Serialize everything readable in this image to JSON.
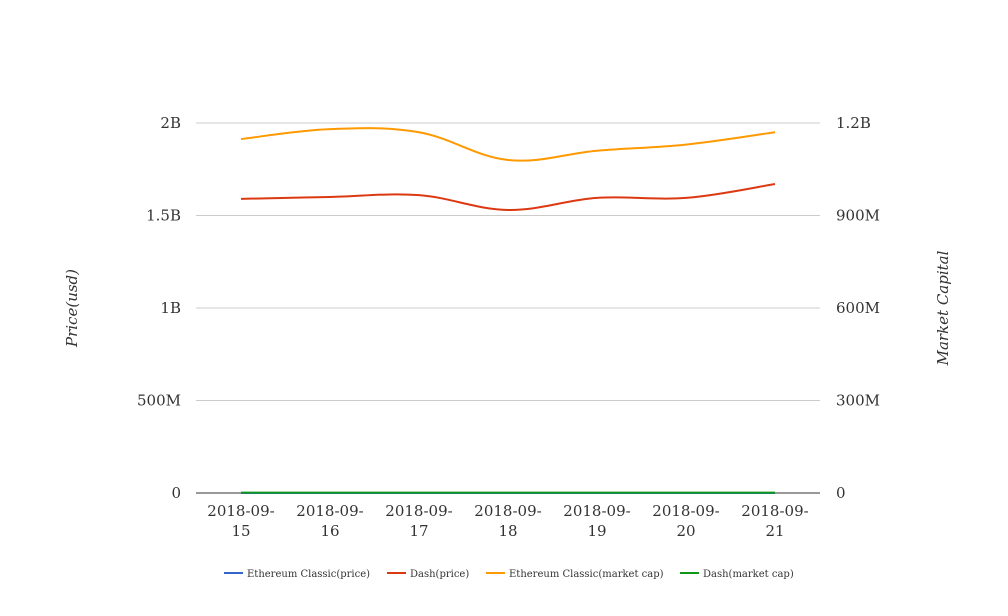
{
  "chart_data": {
    "type": "line",
    "x": [
      "2018-09-15",
      "2018-09-16",
      "2018-09-17",
      "2018-09-18",
      "2018-09-19",
      "2018-09-20",
      "2018-09-21"
    ],
    "x_tick_labels": [
      [
        "2018-09-",
        "15"
      ],
      [
        "2018-09-",
        "16"
      ],
      [
        "2018-09-",
        "17"
      ],
      [
        "2018-09-",
        "18"
      ],
      [
        "2018-09-",
        "19"
      ],
      [
        "2018-09-",
        "20"
      ],
      [
        "2018-09-",
        "21"
      ]
    ],
    "ylabel": "Price(usd)",
    "y2label": "Market Capital",
    "ylim": [
      0,
      2000000000
    ],
    "y2lim": [
      0,
      1200000000
    ],
    "y_ticks": [
      0,
      500000000,
      1000000000,
      1500000000,
      2000000000
    ],
    "y_tick_labels": [
      "0",
      "500M",
      "1B",
      "1.5B",
      "2B"
    ],
    "y2_ticks": [
      0,
      300000000,
      600000000,
      900000000,
      1200000000
    ],
    "y2_tick_labels": [
      "0",
      "300M",
      "600M",
      "900M",
      "1.2B"
    ],
    "grid": true,
    "legend_position": "bottom",
    "series": [
      {
        "name": "Ethereum Classic(price)",
        "axis": "left",
        "color": "#3366cc",
        "values": [
          11.2,
          11.3,
          11.5,
          10.9,
          11.1,
          11.2,
          11.6
        ]
      },
      {
        "name": "Dash(price)",
        "axis": "left",
        "color": "#dc3912",
        "values": [
          1590000000,
          1600000000,
          1610000000,
          1530000000,
          1595000000,
          1595000000,
          1670000000
        ]
      },
      {
        "name": "Ethereum Classic(market cap)",
        "axis": "right",
        "color": "#ff9900",
        "values": [
          1148000000,
          1180000000,
          1170000000,
          1080000000,
          1110000000,
          1130000000,
          1170000000
        ]
      },
      {
        "name": "Dash(market cap)",
        "axis": "right",
        "color": "#109618",
        "values": [
          1200000,
          1210000,
          1220000,
          1150000,
          1190000,
          1195000,
          1250000
        ]
      }
    ]
  }
}
